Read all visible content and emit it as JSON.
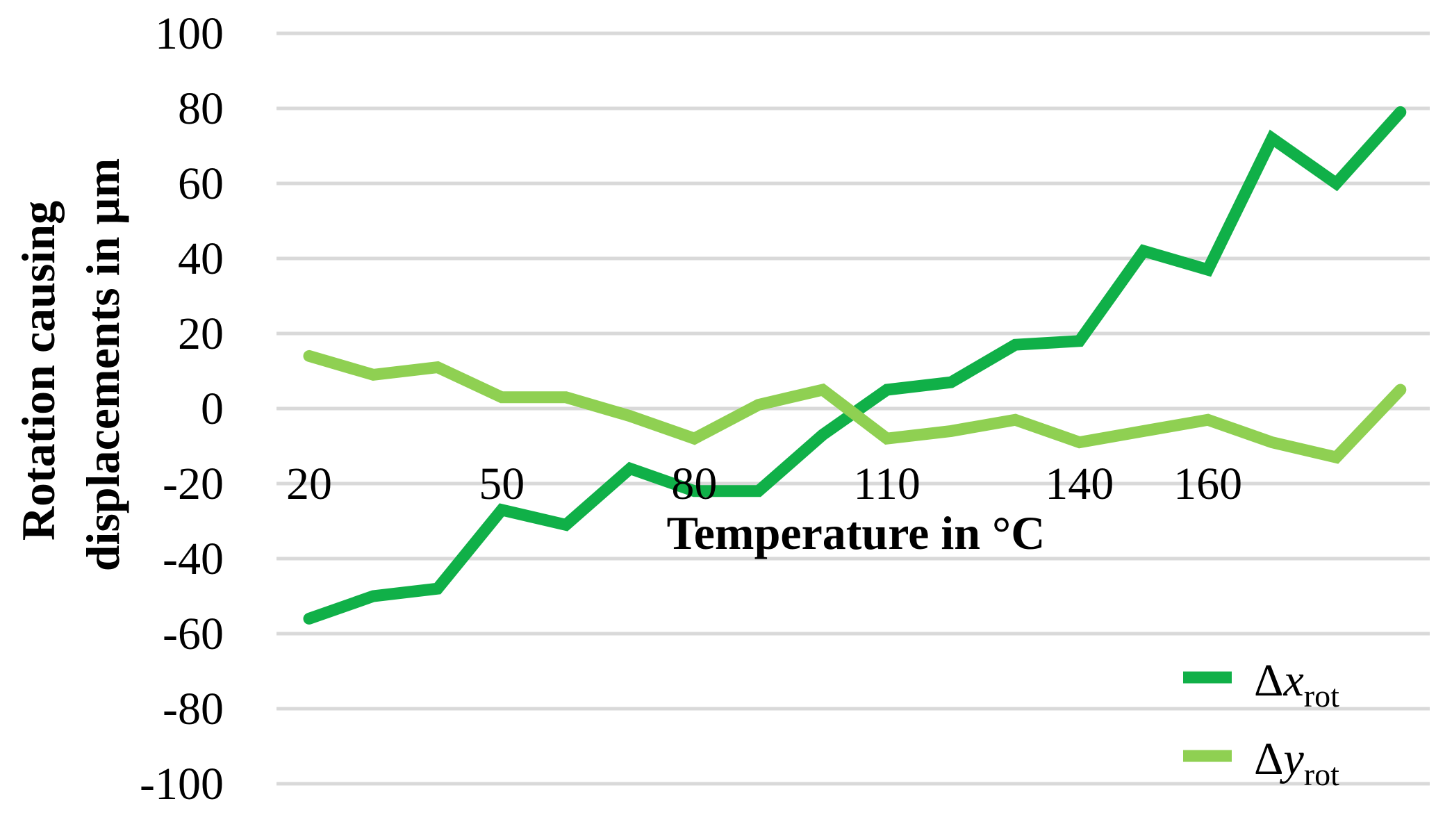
{
  "chart_data": {
    "type": "line",
    "title": "",
    "xlabel": "Temperature in °C",
    "ylabel_lines": [
      "Rotation causing",
      "displacements in µm"
    ],
    "ylim": [
      -100,
      100
    ],
    "y_ticks": [
      100,
      80,
      60,
      40,
      20,
      0,
      -20,
      -40,
      -60,
      -80,
      -100
    ],
    "x_values": [
      20,
      30,
      40,
      50,
      60,
      70,
      80,
      90,
      100,
      110,
      120,
      130,
      140,
      150,
      160,
      170,
      180,
      190
    ],
    "x_tick_labels": [
      {
        "x": 20,
        "label": "20"
      },
      {
        "x": 50,
        "label": "50"
      },
      {
        "x": 80,
        "label": "80"
      },
      {
        "x": 110,
        "label": "110"
      },
      {
        "x": 140,
        "label": "140"
      },
      {
        "x": 160,
        "label": "160"
      }
    ],
    "grid": true,
    "legend_position": "bottom-right",
    "series": [
      {
        "name": "Δx_rot",
        "legend_main": "Δ",
        "legend_var": "x",
        "legend_sub": "rot",
        "color": "#10b048",
        "values": [
          -56,
          -50,
          -48,
          -27,
          -31,
          -16,
          -22,
          -22,
          -7,
          5,
          7,
          17,
          18,
          42,
          37,
          72,
          60,
          79
        ]
      },
      {
        "name": "Δy_rot",
        "legend_main": "Δ",
        "legend_var": "y",
        "legend_sub": "rot",
        "color": "#8fd052",
        "values": [
          14,
          9,
          11,
          3,
          3,
          -2,
          -8,
          1,
          5,
          -8,
          -6,
          -3,
          -9,
          -6,
          -3,
          -9,
          -13,
          5
        ]
      }
    ]
  }
}
